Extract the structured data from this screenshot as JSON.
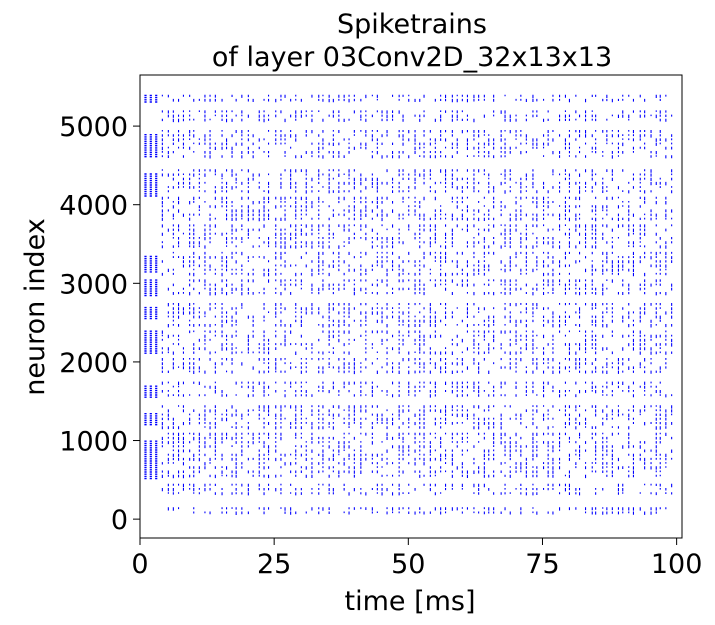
{
  "chart_data": {
    "type": "scatter",
    "title_line1": "Spiketrains",
    "title_line2": "of layer 03Conv2D_32x13x13",
    "xlabel": "time [ms]",
    "ylabel": "neuron index",
    "xlim": [
      0,
      101
    ],
    "ylim": [
      -240,
      5650
    ],
    "xticks": [
      {
        "value": 0,
        "label": "0"
      },
      {
        "value": 25,
        "label": "25"
      },
      {
        "value": 50,
        "label": "50"
      },
      {
        "value": 75,
        "label": "75"
      },
      {
        "value": 100,
        "label": "100"
      }
    ],
    "yticks": [
      {
        "value": 0,
        "label": "0"
      },
      {
        "value": 1000,
        "label": "1000"
      },
      {
        "value": 2000,
        "label": "2000"
      },
      {
        "value": 3000,
        "label": "3000"
      },
      {
        "value": 4000,
        "label": "4000"
      },
      {
        "value": 5000,
        "label": "5000"
      }
    ],
    "grid": false,
    "marker_color": "#0000ff",
    "series": [
      {
        "description": "initial dense burst bands (t approx 0.5-3.5 ms)",
        "times": [
          1,
          2,
          3
        ],
        "bands": [
          [
            520,
            1000
          ],
          [
            1200,
            1350
          ],
          [
            1550,
            1700
          ],
          [
            2100,
            2400
          ],
          [
            2550,
            2700
          ],
          [
            2850,
            3050
          ],
          [
            3150,
            3350
          ],
          [
            4100,
            4400
          ],
          [
            4600,
            4900
          ],
          [
            5300,
            5400
          ]
        ]
      },
      {
        "description": "sustained activity bands (t approx 4-100 ms)",
        "t_start": 4,
        "t_end": 99,
        "bands": [
          [
            50,
            150
          ],
          [
            300,
            450
          ],
          [
            550,
            1100
          ],
          [
            1150,
            1450
          ],
          [
            1550,
            1750
          ],
          [
            1850,
            2050
          ],
          [
            2100,
            2400
          ],
          [
            2450,
            2750
          ],
          [
            2850,
            3050
          ],
          [
            3100,
            3400
          ],
          [
            3450,
            3750
          ],
          [
            3800,
            4100
          ],
          [
            4150,
            4450
          ],
          [
            4600,
            4950
          ],
          [
            5050,
            5200
          ],
          [
            5300,
            5400
          ]
        ]
      }
    ]
  }
}
